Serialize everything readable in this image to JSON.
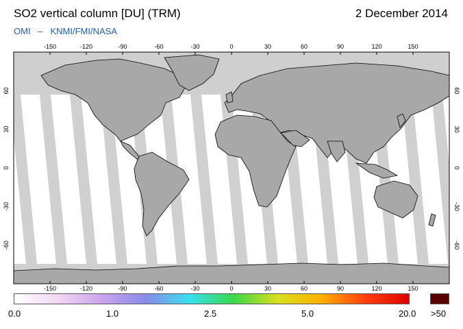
{
  "header": {
    "title": "SO2 vertical column [DU] (TRM)",
    "date": "2 December 2014",
    "source_left": "OMI",
    "source_sep": "–",
    "source_right": "KNMI/FMI/NASA"
  },
  "map": {
    "lon_ticks": [
      "-150",
      "-120",
      "-90",
      "-60",
      "-30",
      "0",
      "30",
      "60",
      "90",
      "120",
      "150"
    ],
    "lat_ticks": [
      "60",
      "30",
      "0",
      "-30",
      "-60"
    ],
    "colors": {
      "ocean": "#ffffff",
      "land_land_no_data": "#c8c8c8",
      "land_dark": "#9a9a9a",
      "polar_no_data": "#c8c8c8",
      "coastline": "#000000"
    }
  },
  "colorbar": {
    "labels": [
      "0.0",
      "1.0",
      "2.5",
      "5.0",
      "20.0",
      ">50"
    ],
    "gradient_colors": [
      "#ffffff",
      "#f3d7f3",
      "#c9a3ee",
      "#8a8be8",
      "#38e0f0",
      "#3ad84a",
      "#d8e020",
      "#ffb000",
      "#ff4010",
      "#e00000"
    ],
    "overflow_color": "#5a0000"
  }
}
